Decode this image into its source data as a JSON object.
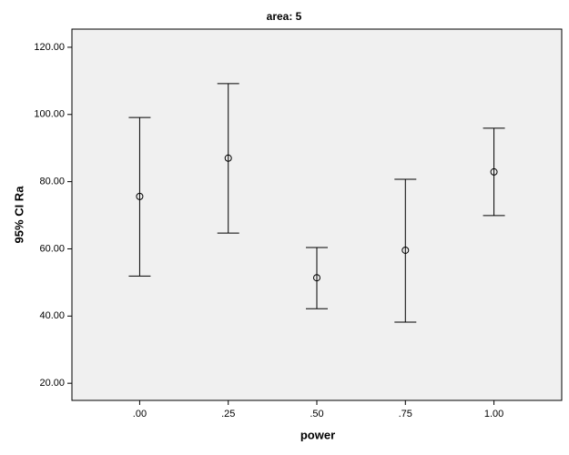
{
  "chart_data": {
    "type": "errorbar",
    "title": "area: 5",
    "x_label": "power",
    "y_label": "95% CI Ra",
    "categories": [
      ".00",
      ".25",
      ".50",
      ".75",
      "1.00"
    ],
    "values": [
      75.6,
      87.0,
      51.4,
      59.6,
      82.9
    ],
    "lower": [
      51.9,
      64.7,
      42.2,
      38.2,
      69.9
    ],
    "upper": [
      99.1,
      109.2,
      60.4,
      80.7,
      95.9
    ],
    "color": "#000000",
    "ylim": [
      14.9,
      125.4
    ],
    "yticks": [
      {
        "value": 20,
        "label": "20.00"
      },
      {
        "value": 40,
        "label": "40.00"
      },
      {
        "value": 60,
        "label": "60.00"
      },
      {
        "value": 80,
        "label": "80.00"
      },
      {
        "value": 100,
        "label": "100.00"
      },
      {
        "value": 120,
        "label": "120.00"
      }
    ],
    "grid": false
  }
}
